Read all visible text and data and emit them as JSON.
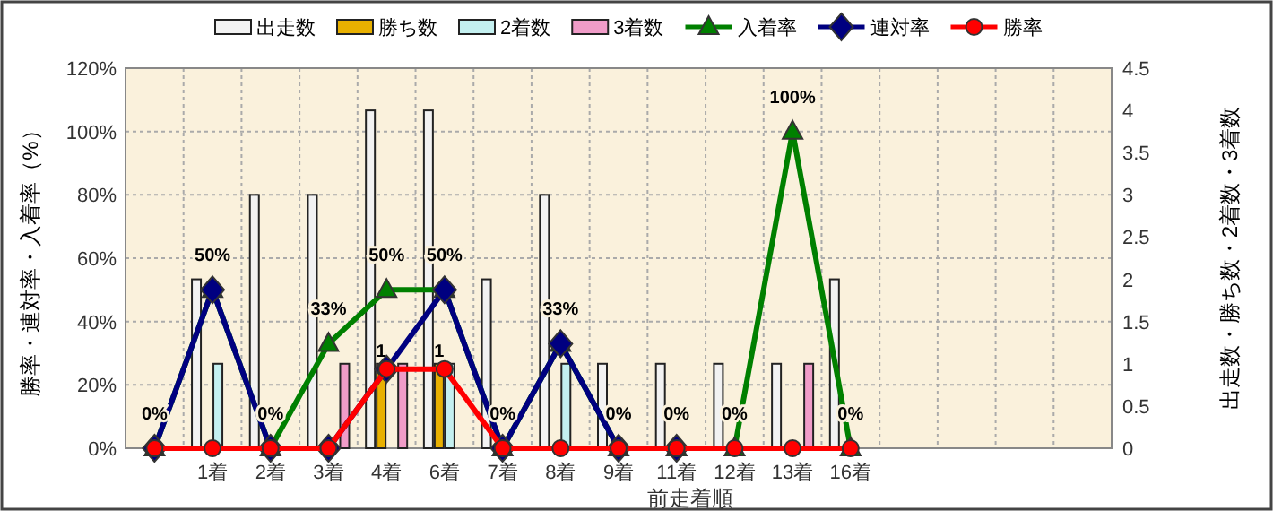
{
  "chart_data": {
    "type": "bar",
    "xlabel": "前走着順",
    "ylabel": "勝率・連対率・入着率（%）",
    "y2label": "出走数・勝ち数・2着数・3着数",
    "categories": [
      null,
      "1着",
      "2着",
      "3着",
      "4着",
      "6着",
      "7着",
      "8着",
      "9着",
      "11着",
      "12着",
      "13着",
      "16着",
      null,
      null,
      null,
      null
    ],
    "series": [
      {
        "name": "出走数",
        "axis": "y2",
        "color": "#f2f2f2",
        "values": [
          null,
          2,
          3,
          3,
          4,
          4,
          2,
          3,
          1,
          1,
          1,
          1,
          2,
          null,
          null,
          null,
          null
        ]
      },
      {
        "name": "勝ち数",
        "axis": "y2",
        "color": "#e8b000",
        "values": [
          null,
          null,
          null,
          null,
          1,
          1,
          null,
          null,
          null,
          null,
          null,
          null,
          null,
          null,
          null,
          null,
          null
        ],
        "value_labels": [
          null,
          null,
          null,
          null,
          "1",
          "1",
          null,
          null,
          null,
          null,
          null,
          null,
          null,
          null,
          null,
          null,
          null
        ]
      },
      {
        "name": "2着数",
        "axis": "y2",
        "color": "#c4f0f0",
        "values": [
          null,
          1,
          null,
          null,
          null,
          1,
          null,
          1,
          null,
          null,
          null,
          null,
          null,
          null,
          null,
          null,
          null
        ]
      },
      {
        "name": "3着数",
        "axis": "y2",
        "color": "#f09cc8",
        "values": [
          null,
          null,
          null,
          1,
          1,
          null,
          null,
          null,
          null,
          null,
          null,
          1,
          null,
          null,
          null,
          null,
          null
        ]
      },
      {
        "name": "入着率",
        "type": "line",
        "color": "#008000",
        "marker": "triangle",
        "values": [
          0,
          50,
          0,
          33,
          50,
          50,
          0,
          33,
          0,
          0,
          0,
          100,
          0,
          null,
          null,
          null,
          null
        ],
        "value_labels": [
          "0%",
          "50%",
          "0%",
          "33%",
          "50%",
          "50%",
          "0%",
          "33%",
          "0%",
          "0%",
          "0%",
          "100%",
          "0%",
          null,
          null,
          null,
          null
        ]
      },
      {
        "name": "連対率",
        "type": "line",
        "color": "#000080",
        "marker": "diamond",
        "values": [
          0,
          50,
          0,
          0,
          25,
          50,
          0,
          33,
          0,
          0,
          null,
          null,
          null,
          null,
          null,
          null,
          null
        ]
      },
      {
        "name": "勝率",
        "type": "line",
        "color": "#ff0000",
        "marker": "circle",
        "values": [
          0,
          0,
          0,
          0,
          25,
          25,
          0,
          0,
          0,
          0,
          0,
          0,
          0,
          null,
          null,
          null,
          null
        ]
      }
    ],
    "ylim": [
      0,
      120
    ],
    "yticks": [
      {
        "value": 0,
        "label": "0%"
      },
      {
        "value": 20,
        "label": "20%"
      },
      {
        "value": 40,
        "label": "40%"
      },
      {
        "value": 60,
        "label": "60%"
      },
      {
        "value": 80,
        "label": "80%"
      },
      {
        "value": 100,
        "label": "100%"
      },
      {
        "value": 120,
        "label": "120%"
      }
    ],
    "y2lim": [
      0,
      4.5
    ],
    "y2ticks": [
      0,
      0.5,
      1,
      1.5,
      2,
      2.5,
      3,
      3.5,
      4,
      4.5
    ],
    "grid": true,
    "legend": "top",
    "line_style": "solid"
  }
}
